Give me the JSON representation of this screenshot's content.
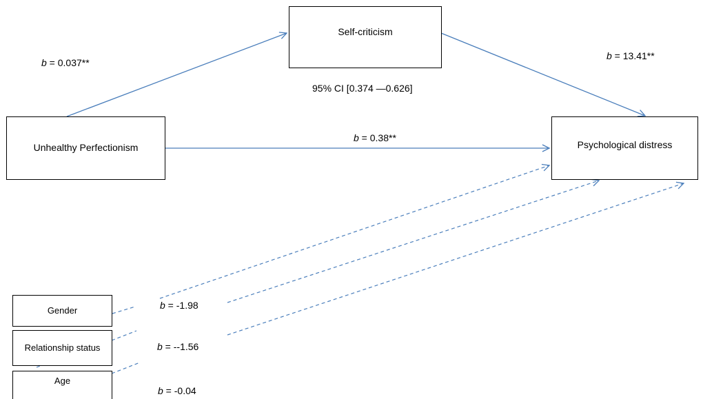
{
  "colors": {
    "arrow": "#4a7ebb",
    "box_border": "#000000",
    "text": "#000000"
  },
  "nodes": {
    "self_criticism": "Self-criticism",
    "unhealthy_perfectionism": "Unhealthy Perfectionism",
    "psychological_distress": "Psychological distress",
    "gender": "Gender",
    "relationship_status": "Relationship status",
    "age": "Age"
  },
  "paths": {
    "coef_symbol": "b",
    "a_path": " = 0.037**",
    "b_path": " = 13.41**",
    "c_prime_path": " = 0.38**",
    "indirect_ci": "95% CI [0.374 —0.626]",
    "gender_cov": " = -1.98",
    "relationship_cov": " = --1.56",
    "age_cov": " = -0.04"
  }
}
